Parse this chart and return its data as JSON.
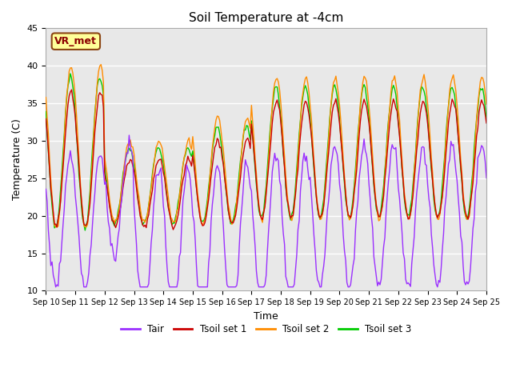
{
  "title": "Soil Temperature at -4cm",
  "xlabel": "Time",
  "ylabel": "Temperature (C)",
  "ylim": [
    10,
    45
  ],
  "colors": {
    "Tair": "#9B30FF",
    "Tsoil_set1": "#CC0000",
    "Tsoil_set2": "#FF8C00",
    "Tsoil_set3": "#00CC00"
  },
  "legend_labels": [
    "Tair",
    "Tsoil set 1",
    "Tsoil set 2",
    "Tsoil set 3"
  ],
  "annotation_text": "VR_met",
  "annotation_box_color": "#FFFF99",
  "annotation_border_color": "#8B4513",
  "x_tick_labels": [
    "Sep 10",
    "Sep 11",
    "Sep 12",
    "Sep 13",
    "Sep 14",
    "Sep 15",
    "Sep 16",
    "Sep 17",
    "Sep 18",
    "Sep 19",
    "Sep 20",
    "Sep 21",
    "Sep 22",
    "Sep 23",
    "Sep 24",
    "Sep 25"
  ],
  "yticks": [
    10,
    15,
    20,
    25,
    30,
    35,
    40,
    45
  ],
  "fig_bg": "#ffffff",
  "plot_bg": "#e8e8e8",
  "grid_color": "#ffffff"
}
